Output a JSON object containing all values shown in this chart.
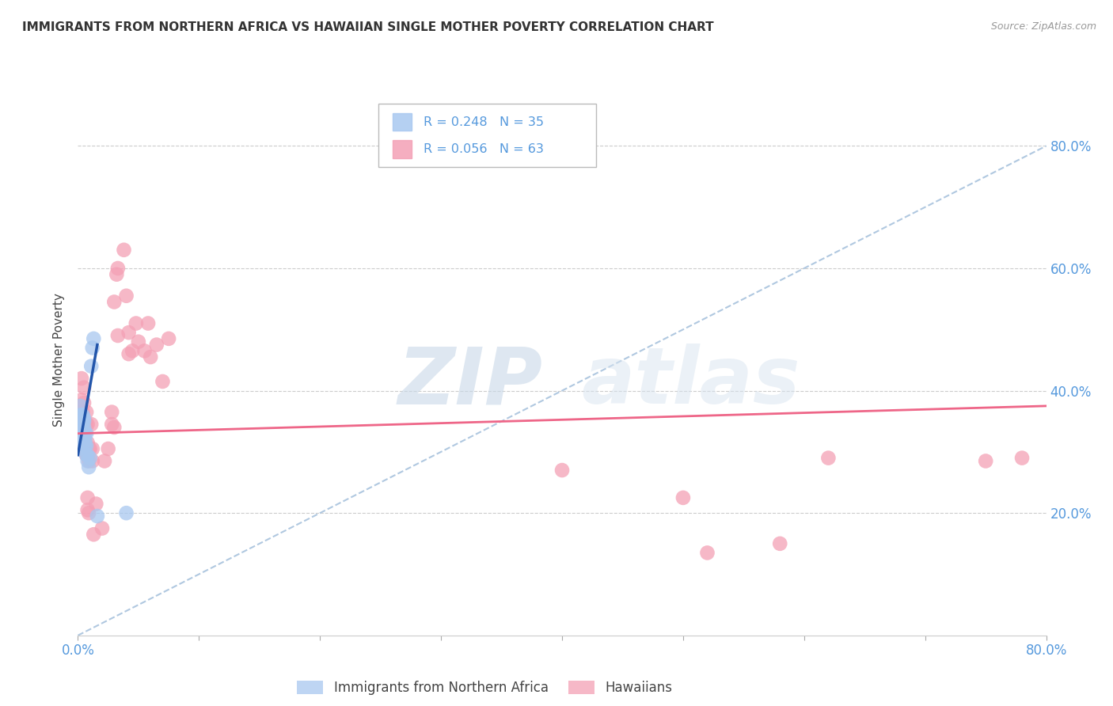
{
  "title": "IMMIGRANTS FROM NORTHERN AFRICA VS HAWAIIAN SINGLE MOTHER POVERTY CORRELATION CHART",
  "source": "Source: ZipAtlas.com",
  "ylabel_label": "Single Mother Poverty",
  "xlim": [
    0.0,
    0.8
  ],
  "ylim": [
    0.0,
    0.9
  ],
  "xtick_positions": [
    0.0,
    0.1,
    0.2,
    0.3,
    0.4,
    0.5,
    0.6,
    0.7,
    0.8
  ],
  "xtick_labels": [
    "0.0%",
    "",
    "",
    "",
    "",
    "",
    "",
    "",
    "80.0%"
  ],
  "ytick_positions": [
    0.2,
    0.4,
    0.6,
    0.8
  ],
  "ytick_labels": [
    "20.0%",
    "40.0%",
    "60.0%",
    "80.0%"
  ],
  "legend_r_blue": "R = 0.248",
  "legend_n_blue": "N = 35",
  "legend_r_pink": "R = 0.056",
  "legend_n_pink": "N = 63",
  "watermark_zip": "ZIP",
  "watermark_atlas": "atlas",
  "blue_color": "#A8C8F0",
  "pink_color": "#F4A0B5",
  "blue_line_color": "#2255AA",
  "pink_line_color": "#EE6688",
  "dashed_line_color": "#B0C8E0",
  "grid_color": "#CCCCCC",
  "blue_points": [
    [
      0.001,
      0.305
    ],
    [
      0.001,
      0.33
    ],
    [
      0.002,
      0.355
    ],
    [
      0.002,
      0.36
    ],
    [
      0.002,
      0.375
    ],
    [
      0.003,
      0.335
    ],
    [
      0.003,
      0.345
    ],
    [
      0.003,
      0.35
    ],
    [
      0.003,
      0.36
    ],
    [
      0.004,
      0.325
    ],
    [
      0.004,
      0.335
    ],
    [
      0.004,
      0.345
    ],
    [
      0.004,
      0.355
    ],
    [
      0.004,
      0.36
    ],
    [
      0.005,
      0.315
    ],
    [
      0.005,
      0.325
    ],
    [
      0.005,
      0.33
    ],
    [
      0.005,
      0.34
    ],
    [
      0.005,
      0.35
    ],
    [
      0.005,
      0.355
    ],
    [
      0.006,
      0.31
    ],
    [
      0.006,
      0.32
    ],
    [
      0.006,
      0.33
    ],
    [
      0.007,
      0.295
    ],
    [
      0.007,
      0.31
    ],
    [
      0.007,
      0.33
    ],
    [
      0.008,
      0.285
    ],
    [
      0.008,
      0.295
    ],
    [
      0.009,
      0.275
    ],
    [
      0.01,
      0.29
    ],
    [
      0.011,
      0.44
    ],
    [
      0.012,
      0.47
    ],
    [
      0.013,
      0.485
    ],
    [
      0.016,
      0.195
    ],
    [
      0.04,
      0.2
    ]
  ],
  "pink_points": [
    [
      0.001,
      0.315
    ],
    [
      0.002,
      0.355
    ],
    [
      0.002,
      0.375
    ],
    [
      0.003,
      0.35
    ],
    [
      0.003,
      0.365
    ],
    [
      0.003,
      0.385
    ],
    [
      0.003,
      0.42
    ],
    [
      0.004,
      0.335
    ],
    [
      0.004,
      0.35
    ],
    [
      0.004,
      0.365
    ],
    [
      0.005,
      0.325
    ],
    [
      0.005,
      0.35
    ],
    [
      0.005,
      0.38
    ],
    [
      0.005,
      0.405
    ],
    [
      0.006,
      0.3
    ],
    [
      0.006,
      0.315
    ],
    [
      0.006,
      0.345
    ],
    [
      0.007,
      0.295
    ],
    [
      0.007,
      0.345
    ],
    [
      0.007,
      0.365
    ],
    [
      0.008,
      0.205
    ],
    [
      0.008,
      0.225
    ],
    [
      0.008,
      0.315
    ],
    [
      0.008,
      0.345
    ],
    [
      0.009,
      0.2
    ],
    [
      0.009,
      0.285
    ],
    [
      0.009,
      0.305
    ],
    [
      0.01,
      0.305
    ],
    [
      0.011,
      0.345
    ],
    [
      0.012,
      0.285
    ],
    [
      0.012,
      0.305
    ],
    [
      0.013,
      0.165
    ],
    [
      0.015,
      0.215
    ],
    [
      0.02,
      0.175
    ],
    [
      0.022,
      0.285
    ],
    [
      0.025,
      0.305
    ],
    [
      0.028,
      0.345
    ],
    [
      0.028,
      0.365
    ],
    [
      0.03,
      0.34
    ],
    [
      0.03,
      0.545
    ],
    [
      0.032,
      0.59
    ],
    [
      0.033,
      0.49
    ],
    [
      0.033,
      0.6
    ],
    [
      0.038,
      0.63
    ],
    [
      0.04,
      0.555
    ],
    [
      0.042,
      0.46
    ],
    [
      0.042,
      0.495
    ],
    [
      0.045,
      0.465
    ],
    [
      0.048,
      0.51
    ],
    [
      0.05,
      0.48
    ],
    [
      0.055,
      0.465
    ],
    [
      0.058,
      0.51
    ],
    [
      0.06,
      0.455
    ],
    [
      0.065,
      0.475
    ],
    [
      0.07,
      0.415
    ],
    [
      0.075,
      0.485
    ],
    [
      0.4,
      0.27
    ],
    [
      0.5,
      0.225
    ],
    [
      0.52,
      0.135
    ],
    [
      0.58,
      0.15
    ],
    [
      0.62,
      0.29
    ],
    [
      0.75,
      0.285
    ],
    [
      0.78,
      0.29
    ]
  ],
  "blue_line": {
    "x0": 0.0,
    "x1": 0.016,
    "y0": 0.295,
    "y1": 0.475
  },
  "pink_line": {
    "x0": 0.0,
    "x1": 0.8,
    "y0": 0.33,
    "y1": 0.375
  },
  "dashed_line": {
    "x0": 0.0,
    "x1": 0.8,
    "y0": 0.0,
    "y1": 0.8
  }
}
